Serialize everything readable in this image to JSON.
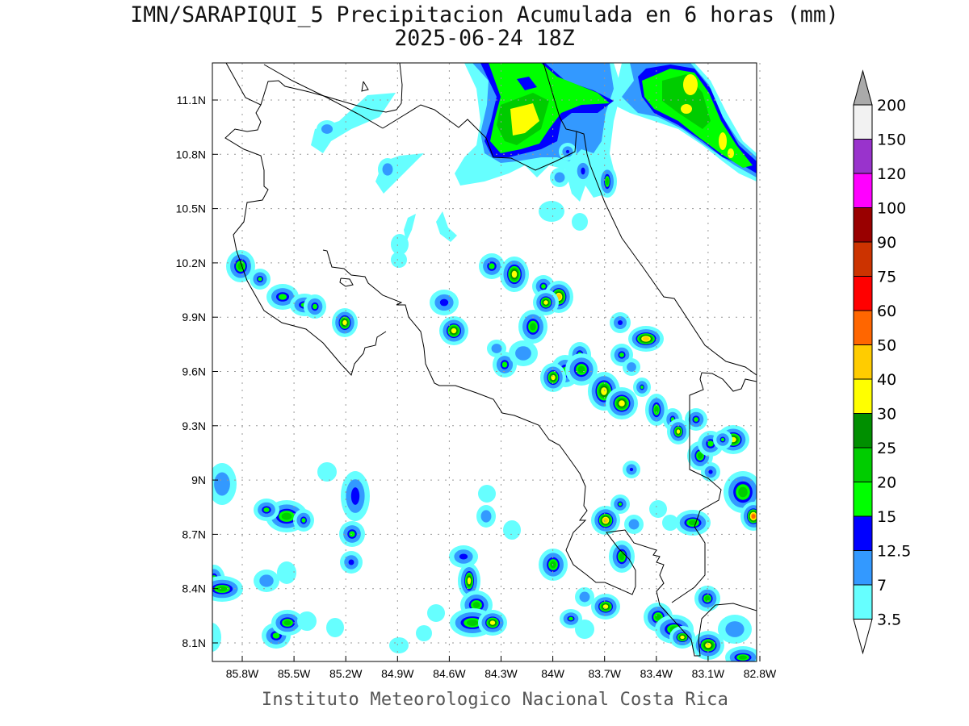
{
  "title": {
    "line1": "IMN/SARAPIQUI_5 Precipitacion Acumulada en 6 horas (mm)",
    "line2": "2025-06-24 18Z"
  },
  "footer": "Instituto Meteorologico Nacional Costa Rica",
  "map": {
    "variable": "6-hour accumulated precipitation",
    "lon_labels": [
      "85.8W",
      "85.5W",
      "85.2W",
      "84.9W",
      "84.6W",
      "84.3W",
      "84W",
      "83.7W",
      "83.4W",
      "83.1W",
      "82.8W"
    ],
    "lat_labels": [
      "11.1N",
      "10.8N",
      "10.5N",
      "10.2N",
      "9.9N",
      "9.6N",
      "9.3N",
      "9N",
      "8.7N",
      "8.4N",
      "8.1N"
    ],
    "grid": "dotted"
  },
  "colorbar": {
    "labels": [
      "200",
      "150",
      "120",
      "100",
      "90",
      "75",
      "60",
      "50",
      "40",
      "30",
      "25",
      "20",
      "15",
      "12.5",
      "7",
      "3.5"
    ],
    "colors": [
      "#f2f2f2",
      "#9933cc",
      "#ff00ff",
      "#990000",
      "#cc3300",
      "#ff0000",
      "#ff6600",
      "#ffcc00",
      "#ffff00",
      "#008f00",
      "#00cc00",
      "#00ff00",
      "#0000ff",
      "#3399ff",
      "#66ffff"
    ],
    "over_color": "#aaaaaa",
    "under_color": "#ffffff"
  }
}
